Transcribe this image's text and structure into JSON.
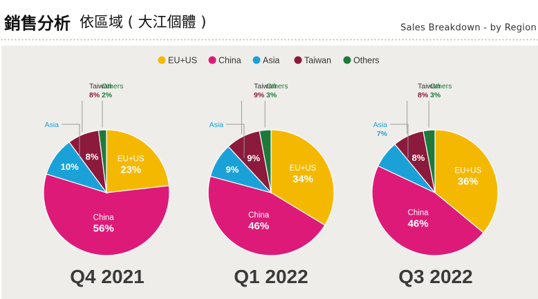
{
  "header": {
    "title_bold": "銷售分析",
    "title_rest": "依區域 ( 大江個體 )",
    "subtitle": "Sales Breakdown - by Region"
  },
  "legend": [
    {
      "name": "EU+US",
      "color": "#f5b800"
    },
    {
      "name": "China",
      "color": "#de1a78"
    },
    {
      "name": "Asia",
      "color": "#1aa2d8"
    },
    {
      "name": "Taiwan",
      "color": "#8b1a3c"
    },
    {
      "name": "Others",
      "color": "#1f7a3a"
    }
  ],
  "chart_data": [
    {
      "type": "pie",
      "title": "Q4 2021",
      "slices": [
        {
          "name": "EU+US",
          "value": 23,
          "label": "23%"
        },
        {
          "name": "China",
          "value": 56,
          "label": "56%"
        },
        {
          "name": "Asia",
          "value": 10,
          "label": "10%"
        },
        {
          "name": "Taiwan",
          "value": 8,
          "label": "8%"
        },
        {
          "name": "Others",
          "value": 2,
          "label": "2%"
        }
      ]
    },
    {
      "type": "pie",
      "title": "Q1 2022",
      "slices": [
        {
          "name": "EU+US",
          "value": 34,
          "label": "34%"
        },
        {
          "name": "China",
          "value": 46,
          "label": "46%"
        },
        {
          "name": "Asia",
          "value": 9,
          "label": "9%"
        },
        {
          "name": "Taiwan",
          "value": 9,
          "label": "9%"
        },
        {
          "name": "Others",
          "value": 3,
          "label": "3%"
        }
      ]
    },
    {
      "type": "pie",
      "title": "Q3 2022",
      "slices": [
        {
          "name": "EU+US",
          "value": 36,
          "label": "36%"
        },
        {
          "name": "China",
          "value": 46,
          "label": "46%"
        },
        {
          "name": "Asia",
          "value": 7,
          "label": "7%"
        },
        {
          "name": "Taiwan",
          "value": 8,
          "label": "8%"
        },
        {
          "name": "Others",
          "value": 3,
          "label": "3%"
        }
      ]
    }
  ]
}
